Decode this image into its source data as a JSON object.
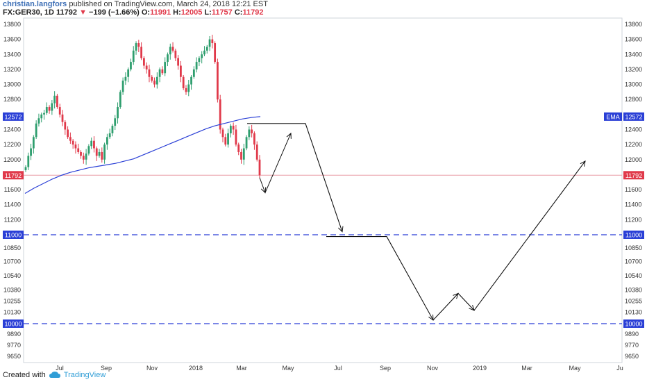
{
  "header": {
    "author": "christian.langfors",
    "published": " published on TradingView.com, March 24, 2018 12:21 EST",
    "symbol": "FX:GER30, 1D",
    "last": "11792",
    "change": "−199 (−1.66%)",
    "o_label": "O:",
    "o_val": "11991",
    "h_label": "H:",
    "h_val": "12005",
    "l_label": "L:",
    "l_val": "11757",
    "c_label": "C:",
    "c_val": "11792"
  },
  "footer": {
    "created_with": "Created with",
    "brand": "TradingView"
  },
  "colors": {
    "up": "#2e9e6e",
    "down": "#e0394a",
    "ema": "#2a3fd6",
    "dashed": "#2a3fd6",
    "price_line": "#e99aa3"
  },
  "chart_data": {
    "type": "candlestick",
    "symbol": "FX:GER30",
    "interval": "1D",
    "y_ticks": [
      13800,
      13600,
      13400,
      13200,
      13000,
      12800,
      12400,
      12200,
      12000,
      11600,
      11400,
      11200,
      11000,
      10850,
      10700,
      10540,
      10380,
      10255,
      10130,
      9890,
      9770,
      9650
    ],
    "x_ticks": [
      "Jul",
      "Sep",
      "Nov",
      "2018",
      "Mar",
      "May",
      "Jul",
      "Sep",
      "Nov",
      "2019",
      "Mar",
      "May",
      "Ju"
    ],
    "ylim": [
      9600,
      13900
    ],
    "badges": [
      {
        "value": 12572,
        "label": "12572",
        "right_tag": "EMA",
        "color": "#2a3fd6"
      },
      {
        "value": 11792,
        "label": "11792",
        "color": "#e0394a"
      },
      {
        "value": 11000,
        "label": "11000",
        "color": "#2a3fd6"
      },
      {
        "value": 10000,
        "label": "10000",
        "color": "#2a3fd6"
      }
    ],
    "horizontal_lines": [
      {
        "value": 11000,
        "style": "dashed"
      },
      {
        "value": 10000,
        "style": "dashed"
      },
      {
        "value": 11792,
        "style": "solid-light"
      }
    ],
    "candles_close": [
      11900,
      12050,
      12150,
      12300,
      12480,
      12550,
      12600,
      12620,
      12700,
      12650,
      12750,
      12850,
      12700,
      12600,
      12500,
      12400,
      12300,
      12250,
      12200,
      12150,
      12100,
      12050,
      12000,
      12080,
      12180,
      12250,
      12150,
      12050,
      12100,
      12000,
      12200,
      12300,
      12350,
      12450,
      12550,
      12700,
      12900,
      13050,
      13100,
      13200,
      13300,
      13450,
      13550,
      13500,
      13350,
      13250,
      13200,
      13100,
      13050,
      13000,
      13100,
      13200,
      13150,
      13300,
      13400,
      13500,
      13450,
      13350,
      13250,
      13100,
      12950,
      12900,
      13000,
      13100,
      13200,
      13300,
      13350,
      13400,
      13450,
      13500,
      13600,
      13550,
      13300,
      12800,
      12400,
      12300,
      12200,
      12350,
      12450,
      12400,
      12200,
      12100,
      12000,
      12150,
      12300,
      12400,
      12350,
      12200,
      12000,
      11792
    ],
    "ema": [
      11550,
      11620,
      11680,
      11740,
      11790,
      11830,
      11860,
      11890,
      11910,
      11930,
      11950,
      11980,
      12010,
      12060,
      12110,
      12160,
      12210,
      12260,
      12310,
      12360,
      12410,
      12450,
      12480,
      12510,
      12540,
      12560,
      12572
    ],
    "drawings": [
      {
        "type": "polyline",
        "points": [
          [
            11760,
            0
          ],
          [
            11560,
            1
          ],
          [
            12350,
            2
          ]
        ]
      },
      {
        "type": "polyline",
        "points": [
          [
            12480,
            0
          ],
          [
            12480,
            1
          ],
          [
            11040,
            2
          ]
        ]
      },
      {
        "type": "polyline",
        "points": [
          [
            10980,
            0
          ],
          [
            10980,
            1
          ],
          [
            10040,
            2
          ],
          [
            10340,
            3
          ],
          [
            10150,
            4
          ],
          [
            11980,
            5
          ]
        ]
      }
    ]
  }
}
